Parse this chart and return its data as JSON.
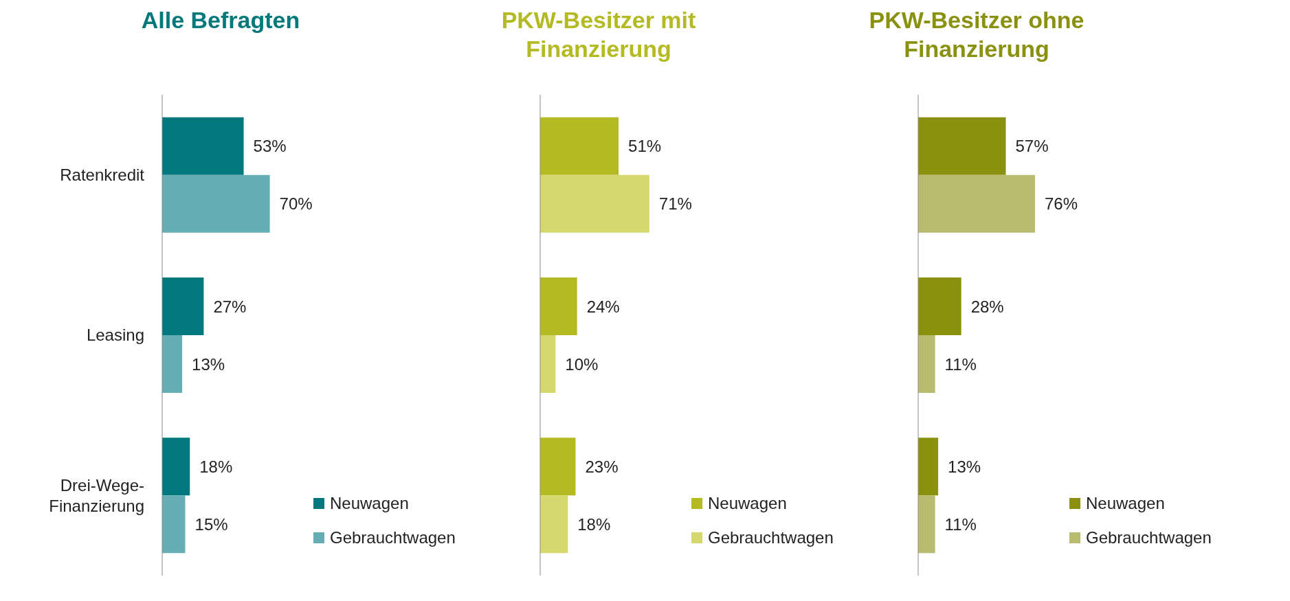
{
  "chart_data": [
    {
      "type": "bar",
      "orientation": "horizontal",
      "title": "Alle Befragten",
      "categories": [
        "Ratenkredit",
        "Leasing",
        "Drei-Wege-Finanzierung"
      ],
      "data_labels": true,
      "legend": "bottom right",
      "grid": false,
      "series": [
        {
          "name": "Neuwagen",
          "color": "#00787c",
          "values": [
            53,
            27,
            18
          ],
          "value_labels": [
            "53%",
            "27%",
            "18%"
          ]
        },
        {
          "name": "Gebrauchtwagen",
          "color": "#66aeb3",
          "values": [
            70,
            13,
            15
          ],
          "value_labels": [
            "70%",
            "13%",
            "15%"
          ]
        }
      ]
    },
    {
      "type": "bar",
      "orientation": "horizontal",
      "title": "PKW-Besitzer mit Finanzierung",
      "categories": [
        null,
        null,
        null
      ],
      "tick_labels": false,
      "data_labels": true,
      "legend": "bottom right",
      "grid": false,
      "series": [
        {
          "name": "Neuwagen",
          "color": "#b3ba22",
          "values": [
            51,
            24,
            23
          ],
          "value_labels": [
            "51%",
            "24%",
            "23%"
          ]
        },
        {
          "name": "Gebrauchtwagen",
          "color": "#d4d86f",
          "values": [
            71,
            10,
            18
          ],
          "value_labels": [
            "71%",
            "10%",
            "18%"
          ]
        }
      ]
    },
    {
      "type": "bar",
      "orientation": "horizontal",
      "title": "PKW-Besitzer ohne Finanzierung",
      "categories": [
        null,
        null,
        null
      ],
      "tick_labels": false,
      "data_labels": true,
      "legend": "bottom right",
      "grid": false,
      "series": [
        {
          "name": "Neuwagen",
          "color": "#8a910e",
          "values": [
            57,
            28,
            13
          ],
          "value_labels": [
            "57%",
            "28%",
            "13%"
          ]
        },
        {
          "name": "Gebrauchtwagen",
          "color": "#b9bc6f",
          "values": [
            76,
            11,
            11
          ],
          "value_labels": [
            "76%",
            "11%",
            "11%"
          ]
        }
      ]
    }
  ]
}
